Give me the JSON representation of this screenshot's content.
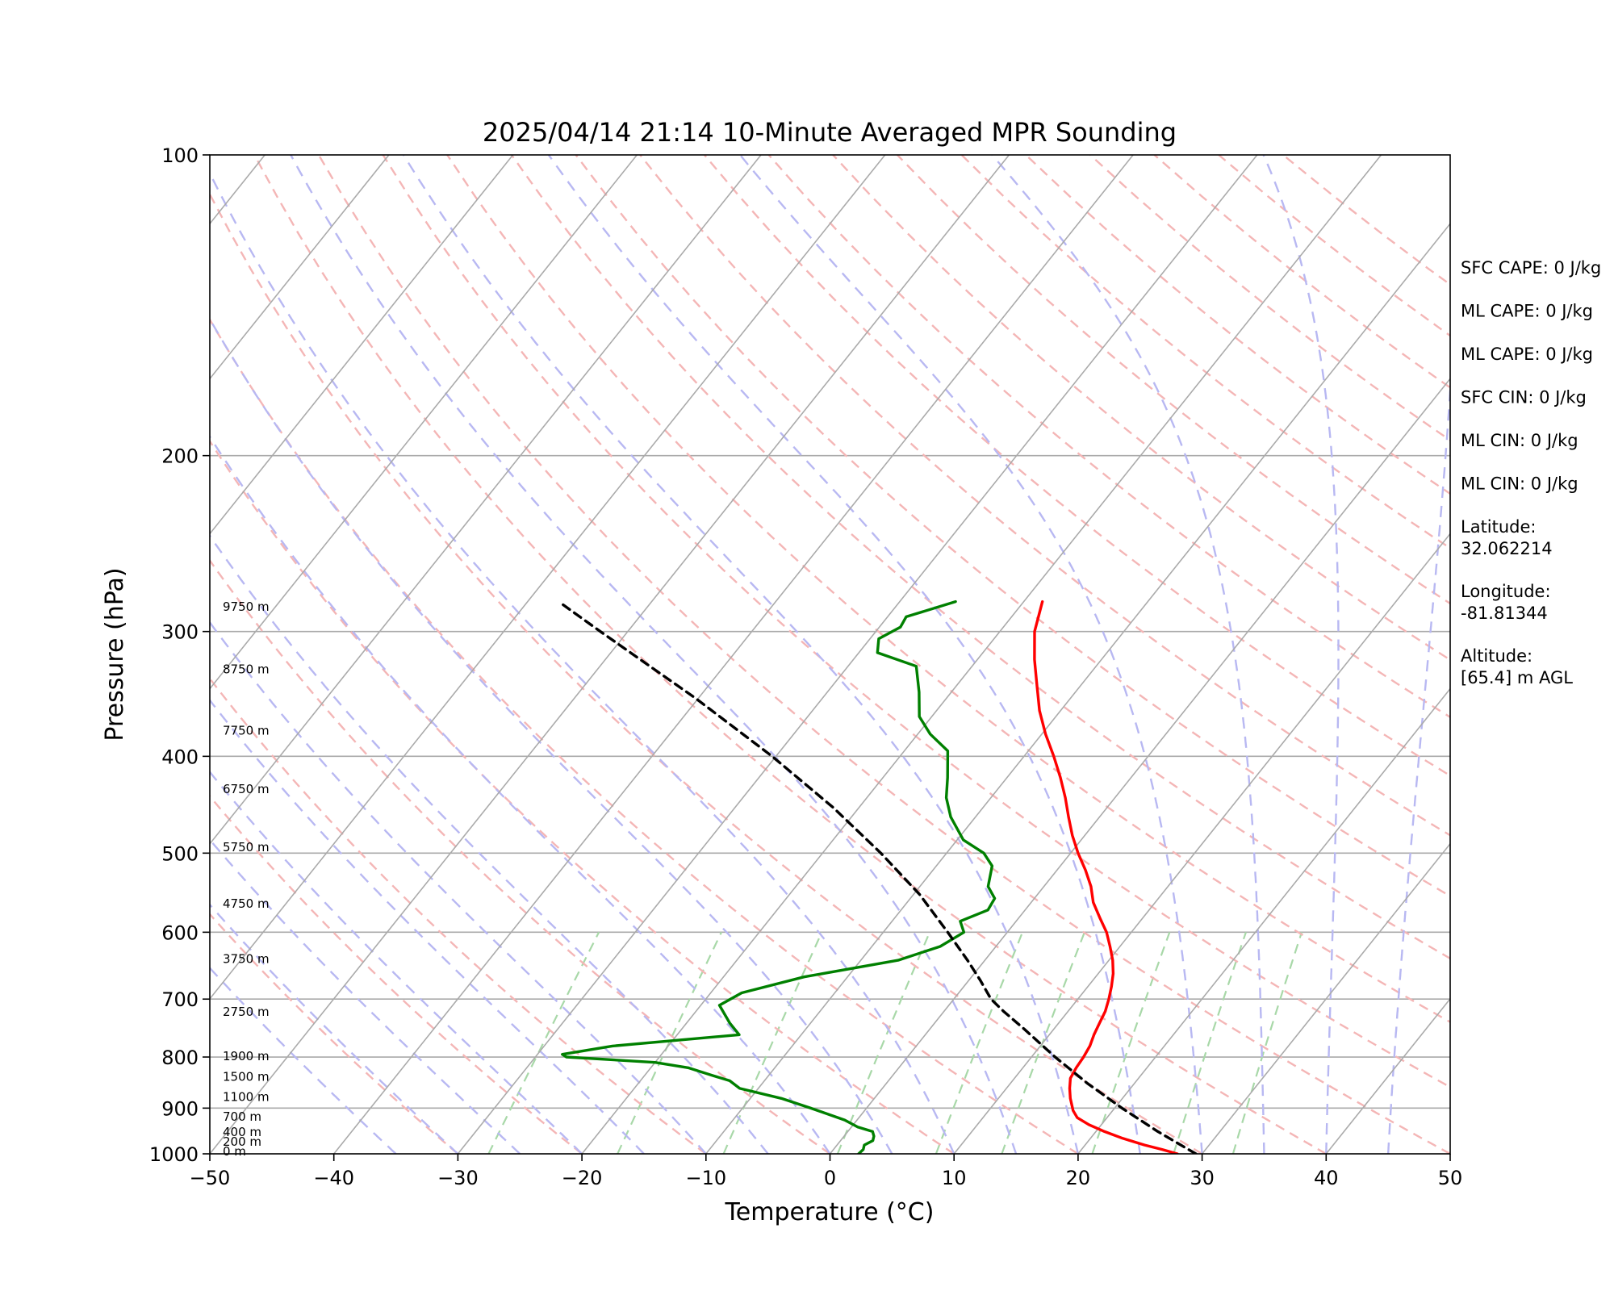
{
  "chart_data": {
    "type": "line",
    "title": "2025/04/14 21:14 10-Minute Averaged MPR Sounding",
    "xlabel": "Temperature (°C)",
    "ylabel": "Pressure (hPa)",
    "xlim": [
      -50,
      50
    ],
    "ylim": [
      1000,
      100
    ],
    "y_scale": "log",
    "skew": "skew-T log-P",
    "grid": true,
    "x_ticks": [
      "−50",
      "−40",
      "−30",
      "−20",
      "−10",
      "0",
      "10",
      "20",
      "30",
      "40",
      "50"
    ],
    "y_ticks": [
      "100",
      "200",
      "300",
      "400",
      "500",
      "600",
      "700",
      "800",
      "900",
      "1000"
    ],
    "series": [
      {
        "color": "#ff0000",
        "points": [
          {
            "p": 1000,
            "t": 28.0
          },
          {
            "p": 990,
            "t": 26.5
          },
          {
            "p": 980,
            "t": 24.8
          },
          {
            "p": 965,
            "t": 22.6
          },
          {
            "p": 950,
            "t": 20.7
          },
          {
            "p": 935,
            "t": 19.0
          },
          {
            "p": 920,
            "t": 17.6
          },
          {
            "p": 905,
            "t": 16.8
          },
          {
            "p": 880,
            "t": 15.8
          },
          {
            "p": 860,
            "t": 15.1
          },
          {
            "p": 840,
            "t": 14.5
          },
          {
            "p": 820,
            "t": 14.3
          },
          {
            "p": 800,
            "t": 14.2
          },
          {
            "p": 780,
            "t": 14.0
          },
          {
            "p": 760,
            "t": 13.6
          },
          {
            "p": 740,
            "t": 13.3
          },
          {
            "p": 720,
            "t": 13.0
          },
          {
            "p": 700,
            "t": 12.5
          },
          {
            "p": 680,
            "t": 11.9
          },
          {
            "p": 660,
            "t": 11.2
          },
          {
            "p": 640,
            "t": 10.3
          },
          {
            "p": 620,
            "t": 9.2
          },
          {
            "p": 600,
            "t": 8.0
          },
          {
            "p": 580,
            "t": 6.5
          },
          {
            "p": 560,
            "t": 5.0
          },
          {
            "p": 540,
            "t": 3.8
          },
          {
            "p": 520,
            "t": 2.3
          },
          {
            "p": 500,
            "t": 0.6
          },
          {
            "p": 480,
            "t": -1.0
          },
          {
            "p": 460,
            "t": -2.5
          },
          {
            "p": 440,
            "t": -4.0
          },
          {
            "p": 420,
            "t": -5.7
          },
          {
            "p": 400,
            "t": -7.6
          },
          {
            "p": 380,
            "t": -9.7
          },
          {
            "p": 360,
            "t": -11.7
          },
          {
            "p": 340,
            "t": -13.5
          },
          {
            "p": 320,
            "t": -15.4
          },
          {
            "p": 300,
            "t": -17.2
          },
          {
            "p": 280,
            "t": -18.5
          }
        ]
      },
      {
        "color": "#008000",
        "points": [
          {
            "p": 1000,
            "t": 2.3
          },
          {
            "p": 990,
            "t": 2.4
          },
          {
            "p": 980,
            "t": 2.2
          },
          {
            "p": 970,
            "t": 2.6
          },
          {
            "p": 960,
            "t": 2.4
          },
          {
            "p": 950,
            "t": 2.0
          },
          {
            "p": 940,
            "t": 0.5
          },
          {
            "p": 925,
            "t": -1.0
          },
          {
            "p": 900,
            "t": -4.5
          },
          {
            "p": 880,
            "t": -7.5
          },
          {
            "p": 860,
            "t": -11.5
          },
          {
            "p": 845,
            "t": -12.8
          },
          {
            "p": 835,
            "t": -14.5
          },
          {
            "p": 820,
            "t": -17.0
          },
          {
            "p": 810,
            "t": -20.0
          },
          {
            "p": 800,
            "t": -27.5
          },
          {
            "p": 795,
            "t": -28.0
          },
          {
            "p": 780,
            "t": -24.5
          },
          {
            "p": 760,
            "t": -15.0
          },
          {
            "p": 740,
            "t": -16.5
          },
          {
            "p": 710,
            "t": -18.5
          },
          {
            "p": 690,
            "t": -17.5
          },
          {
            "p": 665,
            "t": -13.5
          },
          {
            "p": 640,
            "t": -7.0
          },
          {
            "p": 620,
            "t": -4.5
          },
          {
            "p": 600,
            "t": -3.5
          },
          {
            "p": 585,
            "t": -4.5
          },
          {
            "p": 570,
            "t": -3.0
          },
          {
            "p": 555,
            "t": -3.2
          },
          {
            "p": 540,
            "t": -4.5
          },
          {
            "p": 515,
            "t": -5.5
          },
          {
            "p": 500,
            "t": -7.0
          },
          {
            "p": 485,
            "t": -9.5
          },
          {
            "p": 460,
            "t": -12.0
          },
          {
            "p": 440,
            "t": -13.6
          },
          {
            "p": 420,
            "t": -14.8
          },
          {
            "p": 395,
            "t": -16.5
          },
          {
            "p": 380,
            "t": -19.0
          },
          {
            "p": 365,
            "t": -21.0
          },
          {
            "p": 345,
            "t": -22.6
          },
          {
            "p": 325,
            "t": -24.5
          },
          {
            "p": 315,
            "t": -28.5
          },
          {
            "p": 305,
            "t": -29.3
          },
          {
            "p": 297,
            "t": -28.3
          },
          {
            "p": 290,
            "t": -28.5
          },
          {
            "p": 280,
            "t": -25.5
          }
        ]
      },
      {
        "color": "#000000",
        "dashed": true,
        "points": [
          {
            "p": 1000,
            "t": 29.5
          },
          {
            "p": 950,
            "t": 25.0
          },
          {
            "p": 900,
            "t": 20.6
          },
          {
            "p": 850,
            "t": 16.2
          },
          {
            "p": 800,
            "t": 11.9
          },
          {
            "p": 750,
            "t": 7.6
          },
          {
            "p": 720,
            "t": 4.8
          },
          {
            "p": 700,
            "t": 3.0
          },
          {
            "p": 670,
            "t": 0.9
          },
          {
            "p": 640,
            "t": -1.4
          },
          {
            "p": 600,
            "t": -4.8
          },
          {
            "p": 550,
            "t": -9.5
          },
          {
            "p": 500,
            "t": -15.3
          },
          {
            "p": 450,
            "t": -22.1
          },
          {
            "p": 400,
            "t": -30.3
          },
          {
            "p": 350,
            "t": -40.2
          },
          {
            "p": 300,
            "t": -52.2
          },
          {
            "p": 280,
            "t": -57.5
          }
        ]
      }
    ],
    "height_labels": [
      {
        "p": 1000,
        "text": "0 m"
      },
      {
        "p": 978,
        "text": "200 m"
      },
      {
        "p": 956,
        "text": "400 m"
      },
      {
        "p": 923,
        "text": "700 m"
      },
      {
        "p": 882,
        "text": "1100 m"
      },
      {
        "p": 842,
        "text": "1500 m"
      },
      {
        "p": 803,
        "text": "1900 m"
      },
      {
        "p": 725,
        "text": "2750 m"
      },
      {
        "p": 642,
        "text": "3750 m"
      },
      {
        "p": 565,
        "text": "4750 m"
      },
      {
        "p": 496,
        "text": "5750 m"
      },
      {
        "p": 434,
        "text": "6750 m"
      },
      {
        "p": 379,
        "text": "7750 m"
      },
      {
        "p": 329,
        "text": "8750 m"
      },
      {
        "p": 285,
        "text": "9750 m"
      }
    ],
    "info": [
      "SFC CAPE: 0 J/kg",
      "ML CAPE: 0 J/kg",
      "ML CAPE: 0 J/kg",
      "SFC CIN: 0 J/kg",
      "ML CIN: 0 J/kg",
      "ML CIN: 0 J/kg",
      "Latitude:",
      "32.062214",
      "Longitude:",
      "-81.81344",
      "Altitude:",
      "[65.4] m AGL"
    ],
    "colors": {
      "isotherm": "#aaaaaa",
      "dry_adiabat": "#f4b6b6",
      "moist_adiabat": "#b8b8f2",
      "mixing_ratio": "#a8d8a8"
    }
  }
}
